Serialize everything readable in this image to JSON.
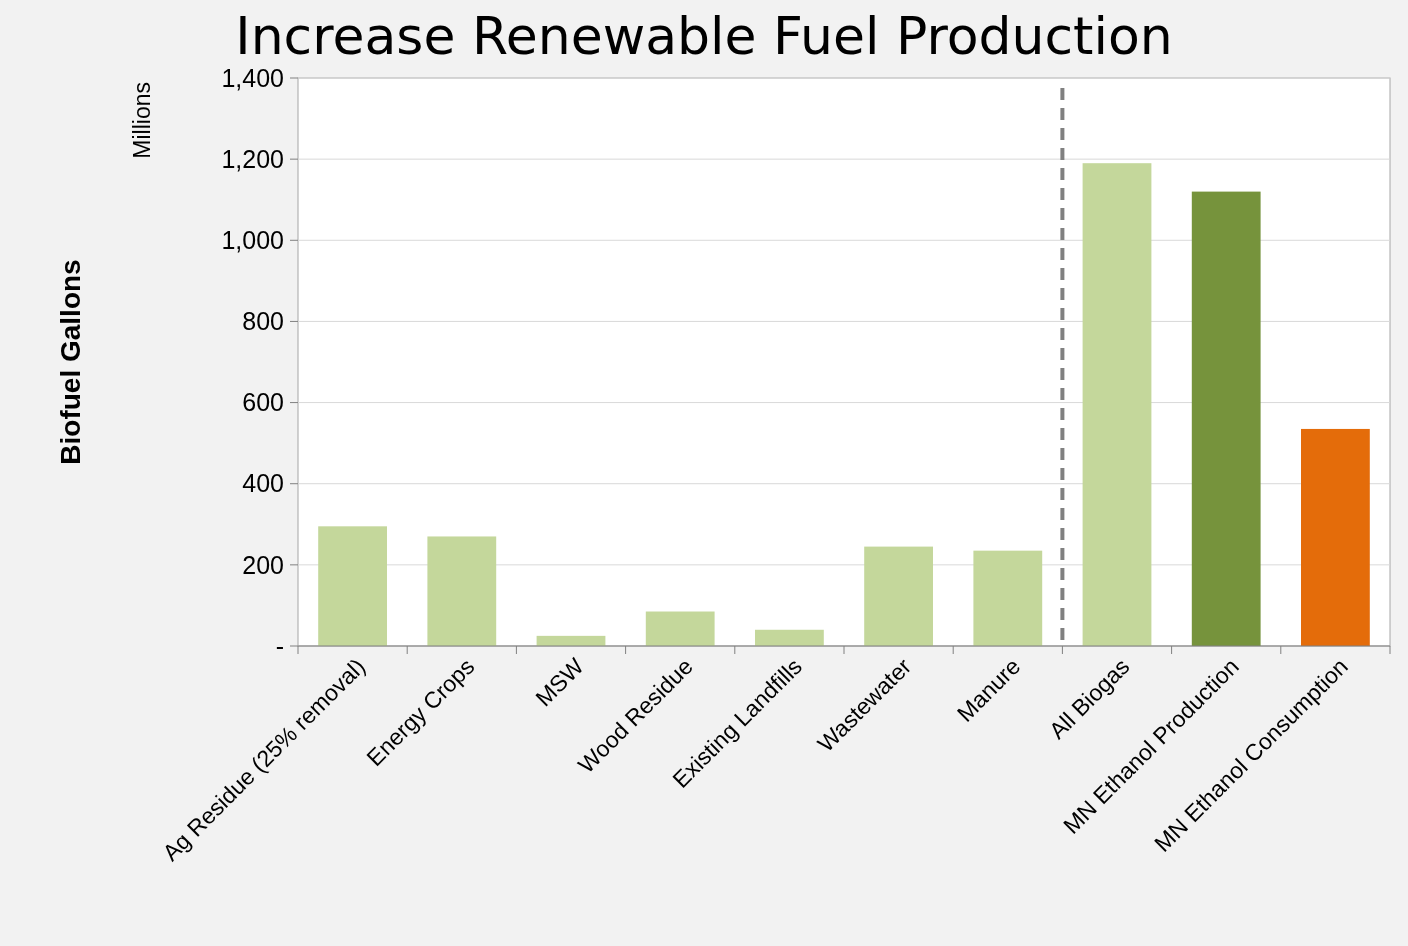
{
  "chart_data": {
    "type": "bar",
    "title": "Increase Renewable Fuel Production",
    "ylabel": "Biofuel Gallons",
    "annotations": [
      "Millions"
    ],
    "categories": [
      "Ag Residue (25% removal)",
      "Energy Crops",
      "MSW",
      "Wood Residue",
      "Existing Landfills",
      "Wastewater",
      "Manure",
      "All Biogas",
      "MN Ethanol Production",
      "MN Ethanol Consumption"
    ],
    "values": [
      295,
      270,
      25,
      85,
      40,
      245,
      235,
      1190,
      1120,
      535
    ],
    "colors": [
      "#c4d79b",
      "#c4d79b",
      "#c4d79b",
      "#c4d79b",
      "#c4d79b",
      "#c4d79b",
      "#c4d79b",
      "#c4d79b",
      "#76933c",
      "#e46c0a"
    ],
    "ylim": [
      0,
      1400
    ],
    "yticks": [
      {
        "value": 0,
        "label": "-"
      },
      {
        "value": 200,
        "label": "200"
      },
      {
        "value": 400,
        "label": "400"
      },
      {
        "value": 600,
        "label": "600"
      },
      {
        "value": 800,
        "label": "800"
      },
      {
        "value": 1000,
        "label": "1,000"
      },
      {
        "value": 1200,
        "label": "1,200"
      },
      {
        "value": 1400,
        "label": "1,400"
      }
    ],
    "grid": "y"
  }
}
